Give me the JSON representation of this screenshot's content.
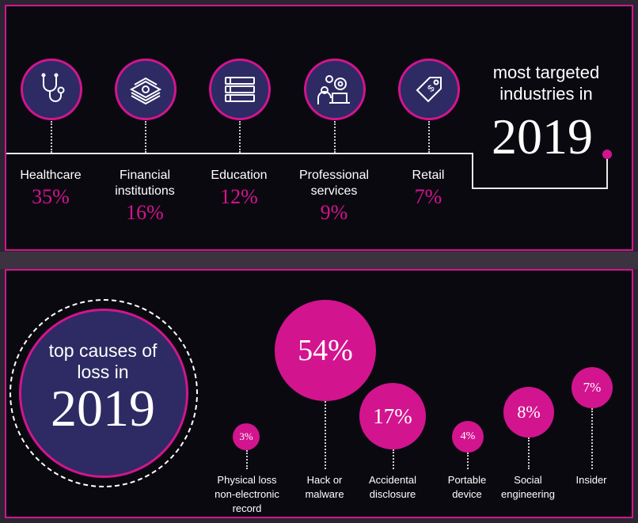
{
  "colors": {
    "accent": "#d3148f",
    "circle_fill": "#2e2a63",
    "background": "#0b0910",
    "text": "#ffffff"
  },
  "industries_panel": {
    "heading_text": "most targeted industries in",
    "heading_year": "2019",
    "icons": [
      "stethoscope-icon",
      "money-stack-icon",
      "books-icon",
      "person-laptop-gears-icon",
      "price-tag-icon"
    ]
  },
  "causes_panel": {
    "heading_text": "top causes of loss in",
    "heading_year": "2019"
  },
  "chart_data": [
    {
      "type": "bar",
      "title": "most targeted industries in 2019",
      "categories": [
        "Healthcare",
        "Financial institutions",
        "Education",
        "Professional services",
        "Retail"
      ],
      "values": [
        35,
        16,
        12,
        9,
        7
      ],
      "value_labels": [
        "35%",
        "16%",
        "12%",
        "9%",
        "7%"
      ],
      "unit": "%"
    },
    {
      "type": "bubble",
      "title": "top causes of loss in 2019",
      "categories": [
        "Physical loss non-electronic record",
        "Hack or malware",
        "Accidental disclosure",
        "Portable device",
        "Social engineering",
        "Insider"
      ],
      "values": [
        3,
        54,
        17,
        4,
        8,
        7
      ],
      "value_labels": [
        "3%",
        "54%",
        "17%",
        "4%",
        "8%",
        "7%"
      ],
      "unit": "%"
    }
  ]
}
